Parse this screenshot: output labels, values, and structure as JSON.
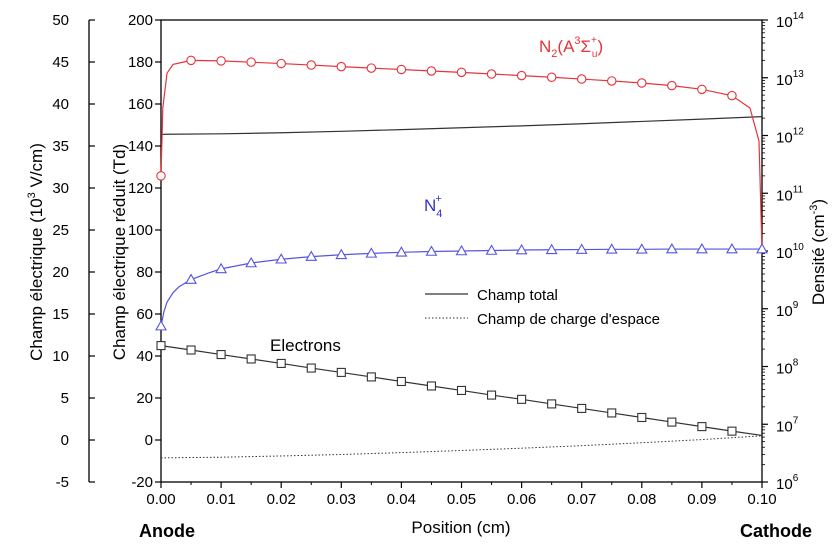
{
  "chart_data": {
    "type": "line",
    "xlabel": "Position (cm)",
    "xlim": [
      0.0,
      0.1
    ],
    "x_ticks": [
      "0.00",
      "0.01",
      "0.02",
      "0.03",
      "0.04",
      "0.05",
      "0.06",
      "0.07",
      "0.08",
      "0.09",
      "0.10"
    ],
    "left_outer_axis": {
      "label_parts": [
        "Champ électrique (10",
        "3",
        " V/cm)"
      ],
      "ylim": [
        -5,
        50
      ],
      "ticks": [
        "-5",
        "0",
        "5",
        "10",
        "15",
        "20",
        "25",
        "30",
        "35",
        "40",
        "45",
        "50"
      ]
    },
    "left_inner_axis": {
      "label": "Champ électrique réduit (Td)",
      "ylim": [
        -20,
        200
      ],
      "ticks": [
        "-20",
        "0",
        "20",
        "40",
        "60",
        "80",
        "100",
        "120",
        "140",
        "160",
        "180",
        "200"
      ]
    },
    "right_axis": {
      "label_parts": [
        "Densité  (cm",
        "-3",
        ")"
      ],
      "scale": "log",
      "ylim": [
        1000000.0,
        100000000000000.0
      ],
      "ticks_exp": [
        "6",
        "7",
        "8",
        "9",
        "10",
        "11",
        "12",
        "13",
        "14"
      ]
    },
    "anode_label": "Anode",
    "cathode_label": "Cathode",
    "series": [
      {
        "name": "Champ total",
        "axis": "left_inner",
        "style": "solid",
        "color": "#333333",
        "x": [
          0.0,
          0.001,
          0.01,
          0.02,
          0.03,
          0.04,
          0.05,
          0.06,
          0.07,
          0.08,
          0.09,
          0.1
        ],
        "y": [
          145.5,
          145.6,
          145.8,
          146.3,
          147.0,
          147.8,
          148.7,
          149.6,
          150.6,
          151.7,
          152.8,
          154.0
        ]
      },
      {
        "name": "Champ de charge d'espace",
        "axis": "left_inner",
        "style": "dotted",
        "color": "#333333",
        "x": [
          0.0,
          0.01,
          0.02,
          0.03,
          0.04,
          0.05,
          0.06,
          0.07,
          0.08,
          0.09,
          0.1
        ],
        "y": [
          -8.5,
          -8.2,
          -7.6,
          -6.9,
          -6.0,
          -5.0,
          -3.9,
          -2.7,
          -1.3,
          0.2,
          2.0
        ]
      },
      {
        "name": "N2(A3Σu+)",
        "label_parts": {
          "a": "N",
          "b": "2",
          "c": "(A",
          "d": "3",
          "e": "Σ",
          "f": "+",
          "g": "u",
          "h": ")"
        },
        "axis": "right",
        "style": "solid",
        "color": "#e8323c",
        "marker": "circle",
        "x": [
          0.0,
          0.0003,
          0.001,
          0.002,
          0.005,
          0.01,
          0.015,
          0.02,
          0.025,
          0.03,
          0.035,
          0.04,
          0.045,
          0.05,
          0.055,
          0.06,
          0.065,
          0.07,
          0.075,
          0.08,
          0.085,
          0.09,
          0.095,
          0.098,
          0.0995,
          0.1
        ],
        "y": [
          200000000000.0,
          3000000000000.0,
          12000000000000.0,
          17000000000000.0,
          20000000000000.0,
          19600000000000.0,
          18600000000000.0,
          17600000000000.0,
          16600000000000.0,
          15600000000000.0,
          14700000000000.0,
          13900000000000.0,
          13100000000000.0,
          12400000000000.0,
          11600000000000.0,
          10900000000000.0,
          10200000000000.0,
          9500000000000.0,
          8800000000000.0,
          8100000000000.0,
          7300000000000.0,
          6300000000000.0,
          4900000000000.0,
          3000000000000.0,
          800000000000.0,
          10000000000.0
        ],
        "marker_x": [
          0.0,
          0.005,
          0.01,
          0.015,
          0.02,
          0.025,
          0.03,
          0.035,
          0.04,
          0.045,
          0.05,
          0.055,
          0.06,
          0.065,
          0.07,
          0.075,
          0.08,
          0.085,
          0.09,
          0.095
        ]
      },
      {
        "name": "N4+",
        "label_parts": {
          "a": "N",
          "b": "4",
          "c": "+"
        },
        "axis": "right",
        "style": "solid",
        "color": "#5555e0",
        "marker": "triangle",
        "x": [
          0.0,
          0.0005,
          0.001,
          0.002,
          0.003,
          0.005,
          0.008,
          0.01,
          0.015,
          0.02,
          0.025,
          0.03,
          0.035,
          0.04,
          0.045,
          0.05,
          0.055,
          0.06,
          0.065,
          0.07,
          0.075,
          0.08,
          0.085,
          0.09,
          0.095,
          0.1
        ],
        "y": [
          500000000.0,
          900000000.0,
          1300000000.0,
          1900000000.0,
          2400000000.0,
          3200000000.0,
          4200000000.0,
          4900000000.0,
          6200000000.0,
          7200000000.0,
          8000000000.0,
          8600000000.0,
          9100000000.0,
          9500000000.0,
          9800000000.0,
          10000000000.0,
          10200000000.0,
          10400000000.0,
          10500000000.0,
          10600000000.0,
          10700000000.0,
          10700000000.0,
          10800000000.0,
          10800000000.0,
          10800000000.0,
          10800000000.0
        ],
        "marker_x": [
          0.0,
          0.005,
          0.01,
          0.015,
          0.02,
          0.025,
          0.03,
          0.035,
          0.04,
          0.045,
          0.05,
          0.055,
          0.06,
          0.065,
          0.07,
          0.075,
          0.08,
          0.085,
          0.09,
          0.095,
          0.1
        ]
      },
      {
        "name": "Electrons",
        "axis": "right",
        "style": "solid",
        "color": "#333333",
        "marker": "square",
        "x": [
          0.0,
          0.005,
          0.01,
          0.015,
          0.02,
          0.025,
          0.03,
          0.035,
          0.04,
          0.045,
          0.05,
          0.055,
          0.06,
          0.065,
          0.07,
          0.075,
          0.08,
          0.085,
          0.09,
          0.095,
          0.1
        ],
        "y": [
          230000000.0,
          193000000.0,
          161000000.0,
          135000000.0,
          113000000.0,
          94000000.0,
          79000000.0,
          66000000.0,
          55000000.0,
          46000000.0,
          38500000.0,
          32000000.0,
          27000000.0,
          22500000.0,
          18800000.0,
          15700000.0,
          13100000.0,
          10900000.0,
          9100000.0,
          7600000.0,
          6400000.0
        ],
        "marker_x": [
          0.0,
          0.005,
          0.01,
          0.015,
          0.02,
          0.025,
          0.03,
          0.035,
          0.04,
          0.045,
          0.05,
          0.055,
          0.06,
          0.065,
          0.07,
          0.075,
          0.08,
          0.085,
          0.09,
          0.095
        ]
      }
    ],
    "legend": {
      "placement": "lower-right",
      "entries": [
        "Champ total",
        "Champ de charge d'espace"
      ]
    },
    "annotations": [
      "N2(A3Σu+)",
      "N4+",
      "Electrons"
    ]
  }
}
